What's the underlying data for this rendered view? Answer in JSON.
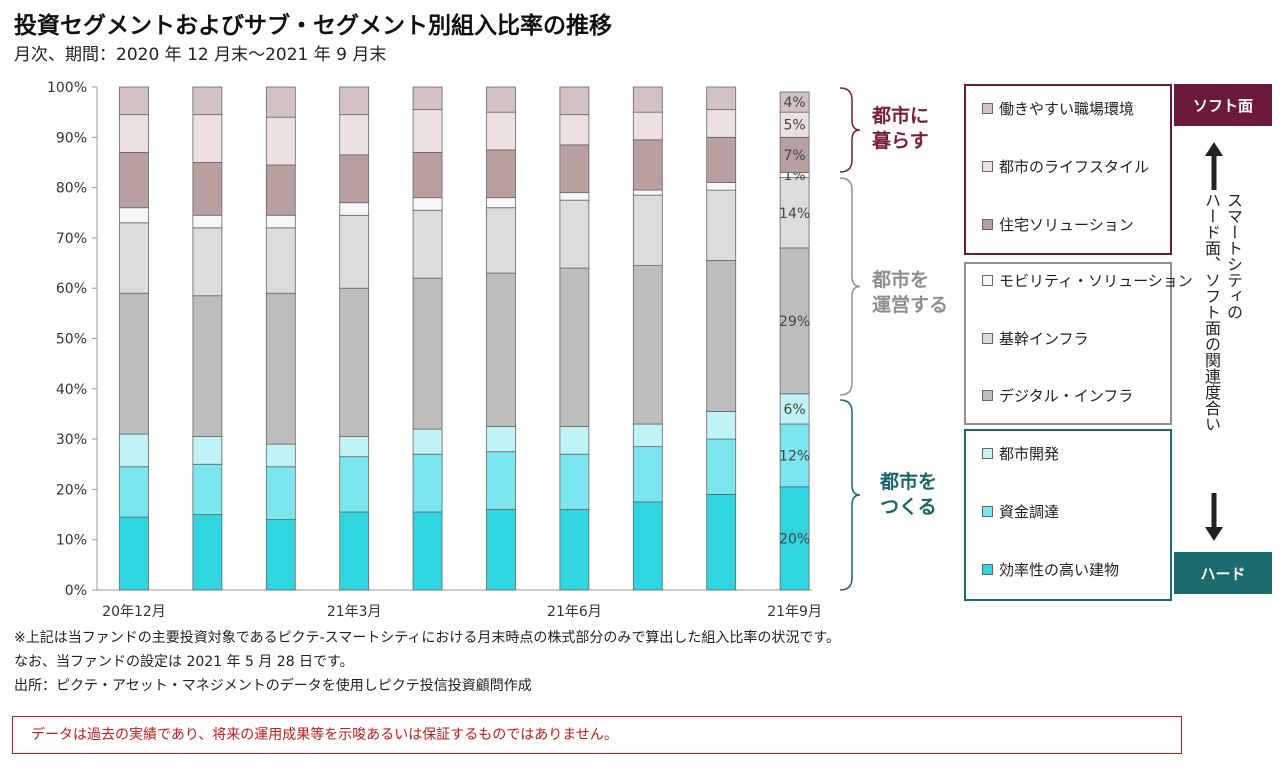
{
  "title": "投資セグメントおよびサブ・セグメント別組入比率の推移",
  "subtitle": "月次、期間：2020 年 12 月末～2021 年 9 月末",
  "chart_data": {
    "type": "bar",
    "stacked": true,
    "categories": [
      "20年12月",
      "21年1月",
      "21年2月",
      "21年3月",
      "21年4月",
      "21年5月",
      "21年6月",
      "21年7月",
      "21年8月",
      "21年9月"
    ],
    "x_tick_labels": [
      "20年12月",
      "",
      "",
      "21年3月",
      "",
      "",
      "21年6月",
      "",
      "",
      "21年9月"
    ],
    "ylim": [
      0,
      100
    ],
    "y_ticks": [
      "0%",
      "10%",
      "20%",
      "30%",
      "40%",
      "50%",
      "60%",
      "70%",
      "80%",
      "90%",
      "100%"
    ],
    "grid": false,
    "series": [
      {
        "name": "効率性の高い建物",
        "color": "#2fd6e0",
        "values": [
          14.5,
          15,
          14,
          15.5,
          15.5,
          16,
          16,
          17.5,
          19,
          20.5
        ]
      },
      {
        "name": "資金調達",
        "color": "#7ce6ee",
        "values": [
          10,
          10,
          10.5,
          11,
          11.5,
          11.5,
          11,
          11,
          11,
          12.5
        ]
      },
      {
        "name": "都市開発",
        "color": "#bff3f6",
        "values": [
          6.5,
          5.5,
          4.5,
          4,
          5,
          5,
          5.5,
          4.5,
          5.5,
          6
        ]
      },
      {
        "name": "デジタル・インフラ",
        "color": "#bdbdbd",
        "values": [
          28,
          28,
          30,
          29.5,
          30,
          30.5,
          31.5,
          31.5,
          30,
          29
        ]
      },
      {
        "name": "基幹インフラ",
        "color": "#dcdcdc",
        "values": [
          14,
          13.5,
          13,
          14.5,
          13.5,
          13,
          13.5,
          14,
          14,
          14
        ]
      },
      {
        "name": "モビリティ・ソリューション",
        "color": "#f7f7f7",
        "values": [
          3,
          2.5,
          2.5,
          2.5,
          2.5,
          2,
          1.5,
          1,
          1.5,
          1
        ]
      },
      {
        "name": "住宅ソリューション",
        "color": "#b7a09f",
        "values": [
          11,
          10.5,
          10,
          9.5,
          9,
          9.5,
          9.5,
          10,
          9,
          7
        ]
      },
      {
        "name": "都市のライフスタイル",
        "color": "#ece0e1",
        "values": [
          7.5,
          9.5,
          9.5,
          8,
          8.5,
          7.5,
          6,
          5.5,
          5.5,
          5
        ]
      },
      {
        "name": "働きやすい職場環境",
        "color": "#d2c2c3",
        "values": [
          5.5,
          5.5,
          6,
          5.5,
          4.5,
          5,
          5.5,
          5,
          4.5,
          4
        ]
      }
    ],
    "data_labels_last_bar": [
      "20%",
      "12%",
      "6%",
      "29%",
      "14%",
      "1%",
      "7%",
      "5%",
      "4%"
    ]
  },
  "groups": [
    {
      "label_line1": "都市に",
      "label_line2": "暮らす",
      "color": "#7a1c3e"
    },
    {
      "label_line1": "都市を",
      "label_line2": "運営する",
      "color": "#8f8f8f"
    },
    {
      "label_line1": "都市を",
      "label_line2": "つくる",
      "color": "#17666a"
    }
  ],
  "legend": {
    "soft": [
      "働きやすい職場環境",
      "都市のライフスタイル",
      "住宅ソリューション"
    ],
    "operate": [
      "モビリティ・ソリューション",
      "基幹インフラ",
      "デジタル・インフラ"
    ],
    "build": [
      "都市開発",
      "資金調達",
      "効率性の高い建物"
    ]
  },
  "side": {
    "soft_tag": "ソフト面",
    "hard_tag": "ハード",
    "vertical_line1": "スマートシティの",
    "vertical_line2": "ハード面、ソフト面の関連度合い",
    "soft_color": "#6b1a3a",
    "hard_color": "#1a6b6e"
  },
  "notes": [
    "※上記は当ファンドの主要投資対象であるピクテ-スマートシティにおける月末時点の株式部分のみで算出した組入比率の状況です。",
    "なお、当ファンドの設定は 2021 年 5 月 28 日です。",
    "出所：ピクテ・アセット・マネジメントのデータを使用しピクテ投信投資顧問作成"
  ],
  "disclaimer": "データは過去の実績であり、将来の運用成果等を示唆あるいは保証するものではありません。"
}
